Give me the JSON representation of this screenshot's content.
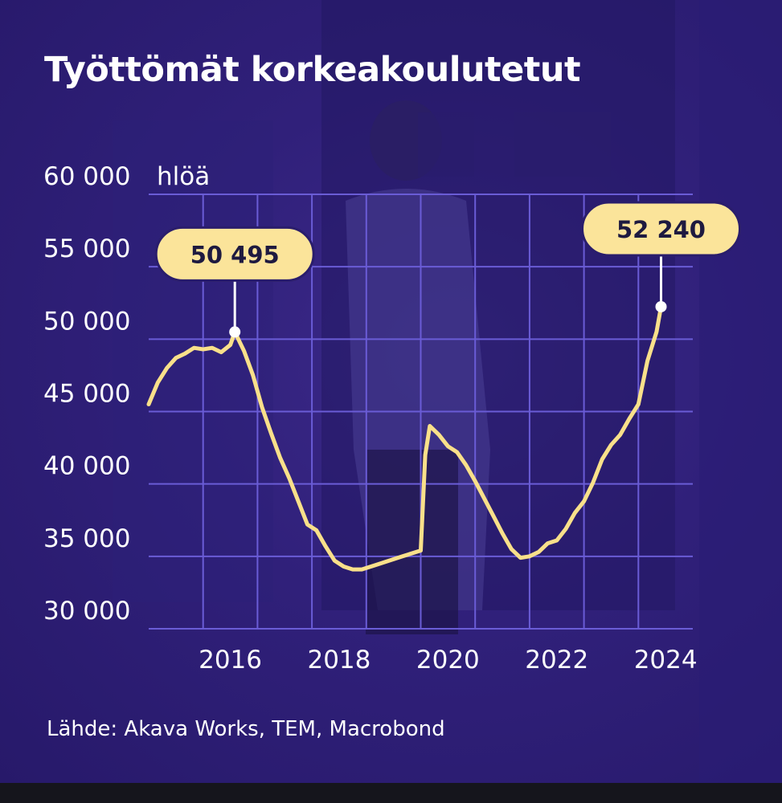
{
  "chart_data": {
    "type": "line",
    "title": "Työttömät korkeakoulutetut",
    "y_unit": "hlöä",
    "source": "Lähde: Akava Works, TEM, Macrobond",
    "ylim": [
      30000,
      60000
    ],
    "xlim": [
      "2015-01",
      "2025-01"
    ],
    "y_ticks": [
      {
        "value": 60000,
        "label": "60 000"
      },
      {
        "value": 55000,
        "label": "55 000"
      },
      {
        "value": 50000,
        "label": "50 000"
      },
      {
        "value": 45000,
        "label": "45 000"
      },
      {
        "value": 40000,
        "label": "40 000"
      },
      {
        "value": 35000,
        "label": "35 000"
      },
      {
        "value": 30000,
        "label": "30 000"
      }
    ],
    "x_ticks": [
      {
        "value": "2016",
        "label": "2016"
      },
      {
        "value": "2018",
        "label": "2018"
      },
      {
        "value": "2020",
        "label": "2020"
      },
      {
        "value": "2022",
        "label": "2022"
      },
      {
        "value": "2024",
        "label": "2024"
      }
    ],
    "grid": true,
    "series": [
      {
        "color": "#f9e08a",
        "points": [
          [
            "2015-01",
            45500
          ],
          [
            "2015-03",
            47000
          ],
          [
            "2015-05",
            48000
          ],
          [
            "2015-07",
            48700
          ],
          [
            "2015-09",
            49000
          ],
          [
            "2015-11",
            49400
          ],
          [
            "2016-01",
            49300
          ],
          [
            "2016-03",
            49400
          ],
          [
            "2016-05",
            49100
          ],
          [
            "2016-07",
            49600
          ],
          [
            "2016-08",
            50495
          ],
          [
            "2016-10",
            49200
          ],
          [
            "2016-12",
            47500
          ],
          [
            "2017-02",
            45300
          ],
          [
            "2017-04",
            43500
          ],
          [
            "2017-06",
            41800
          ],
          [
            "2017-08",
            40400
          ],
          [
            "2017-10",
            38800
          ],
          [
            "2017-12",
            37200
          ],
          [
            "2018-02",
            36800
          ],
          [
            "2018-04",
            35700
          ],
          [
            "2018-06",
            34700
          ],
          [
            "2018-08",
            34300
          ],
          [
            "2018-10",
            34100
          ],
          [
            "2018-12",
            34100
          ],
          [
            "2019-03",
            34400
          ],
          [
            "2019-06",
            34700
          ],
          [
            "2019-09",
            35000
          ],
          [
            "2019-12",
            35300
          ],
          [
            "2020-01",
            35400
          ],
          [
            "2020-02",
            42000
          ],
          [
            "2020-03",
            44000
          ],
          [
            "2020-05",
            43400
          ],
          [
            "2020-07",
            42600
          ],
          [
            "2020-09",
            42200
          ],
          [
            "2020-11",
            41300
          ],
          [
            "2021-01",
            40200
          ],
          [
            "2021-03",
            39000
          ],
          [
            "2021-05",
            37800
          ],
          [
            "2021-07",
            36600
          ],
          [
            "2021-09",
            35500
          ],
          [
            "2021-11",
            34900
          ],
          [
            "2022-01",
            35000
          ],
          [
            "2022-03",
            35300
          ],
          [
            "2022-05",
            35900
          ],
          [
            "2022-07",
            36100
          ],
          [
            "2022-09",
            36900
          ],
          [
            "2022-11",
            38000
          ],
          [
            "2023-01",
            38800
          ],
          [
            "2023-03",
            40100
          ],
          [
            "2023-05",
            41700
          ],
          [
            "2023-07",
            42700
          ],
          [
            "2023-09",
            43400
          ],
          [
            "2023-11",
            44500
          ],
          [
            "2024-01",
            45500
          ],
          [
            "2024-03",
            48500
          ],
          [
            "2024-05",
            50500
          ],
          [
            "2024-06",
            52240
          ]
        ]
      }
    ],
    "annotations": [
      {
        "x": "2016-08",
        "y": 50495,
        "label": "50 495"
      },
      {
        "x": "2024-06",
        "y": 52240,
        "label": "52 240"
      }
    ]
  }
}
